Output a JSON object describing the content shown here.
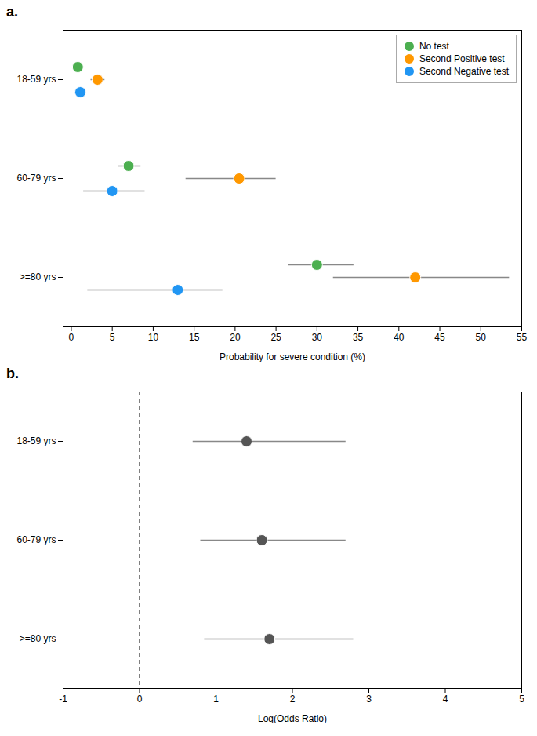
{
  "chart_data": [
    {
      "type": "scatter",
      "title": "a.",
      "xlabel": "Probability for severe condition (%)",
      "xlim": [
        -1,
        55
      ],
      "xticks": [
        0,
        5,
        10,
        15,
        20,
        25,
        30,
        35,
        40,
        45,
        50,
        55
      ],
      "categories": [
        "18-59 yrs",
        "60-79 yrs",
        ">=80 yrs"
      ],
      "series": [
        {
          "name": "No test",
          "color": "#4caf50",
          "values": [
            0.8,
            7.0,
            30.0
          ],
          "xerr_lo": [
            0.4,
            1.2,
            3.5
          ],
          "xerr_hi": [
            0.5,
            1.5,
            4.5
          ]
        },
        {
          "name": "Second Positive test",
          "color": "#ff9800",
          "values": [
            3.2,
            20.5,
            42.0
          ],
          "xerr_lo": [
            0.8,
            6.5,
            10.0
          ],
          "xerr_hi": [
            0.9,
            4.5,
            11.5
          ]
        },
        {
          "name": "Second Negative test",
          "color": "#2196f3",
          "values": [
            1.1,
            5.0,
            13.0
          ],
          "xerr_lo": [
            0.5,
            3.5,
            11.0
          ],
          "xerr_hi": [
            0.4,
            4.0,
            5.5
          ]
        }
      ],
      "legend": "upper right",
      "grid": false
    },
    {
      "type": "scatter",
      "title": "b.",
      "xlabel": "Log(Odds Ratio)",
      "xlim": [
        -1,
        5
      ],
      "xticks": [
        -1,
        0,
        1,
        2,
        3,
        4,
        5
      ],
      "categories": [
        "18-59 yrs",
        "60-79 yrs",
        ">=80 yrs"
      ],
      "values": [
        1.4,
        1.6,
        1.7
      ],
      "xerr_lo": [
        0.7,
        0.8,
        0.85
      ],
      "xerr_hi": [
        1.3,
        1.1,
        1.1
      ],
      "color": "#555555",
      "vline": 0,
      "grid": false
    }
  ]
}
